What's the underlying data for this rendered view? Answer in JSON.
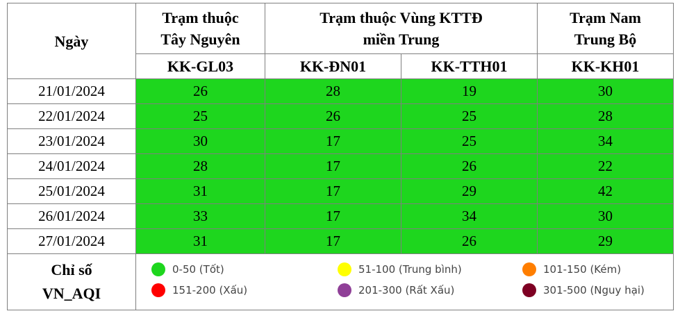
{
  "header": {
    "date_col": "Ngày",
    "group1_line1": "Trạm thuộc",
    "group1_line2": "Tây Nguyên",
    "group2_line1": "Trạm thuộc Vùng KTTĐ",
    "group2_line2": "miền Trung",
    "group3_line1": "Trạm Nam",
    "group3_line2": "Trung Bộ",
    "stations": [
      "KK-GL03",
      "KK-ĐN01",
      "KK-TTH01",
      "KK-KH01"
    ]
  },
  "rows": [
    {
      "date": "21/01/2024",
      "values": [
        "26",
        "28",
        "19",
        "30"
      ]
    },
    {
      "date": "22/01/2024",
      "values": [
        "25",
        "26",
        "25",
        "28"
      ]
    },
    {
      "date": "23/01/2024",
      "values": [
        "30",
        "17",
        "25",
        "34"
      ]
    },
    {
      "date": "24/01/2024",
      "values": [
        "28",
        "17",
        "26",
        "22"
      ]
    },
    {
      "date": "25/01/2024",
      "values": [
        "31",
        "17",
        "29",
        "42"
      ]
    },
    {
      "date": "26/01/2024",
      "values": [
        "33",
        "17",
        "34",
        "30"
      ]
    },
    {
      "date": "27/01/2024",
      "values": [
        "31",
        "17",
        "26",
        "29"
      ]
    }
  ],
  "cell_color": "#1ed61e",
  "legend": {
    "label_line1": "Chỉ số",
    "label_line2": "VN_AQI",
    "items": [
      {
        "label": "0-50 (Tốt)",
        "color": "#1ed61e"
      },
      {
        "label": "51-100 (Trung bình)",
        "color": "#ffff00"
      },
      {
        "label": "101-150 (Kém)",
        "color": "#ff7e00"
      },
      {
        "label": "151-200 (Xấu)",
        "color": "#ff0000"
      },
      {
        "label": "201-300 (Rất Xấu)",
        "color": "#8f3f97"
      },
      {
        "label": "301-500 (Nguy hại)",
        "color": "#7e0023"
      }
    ]
  }
}
